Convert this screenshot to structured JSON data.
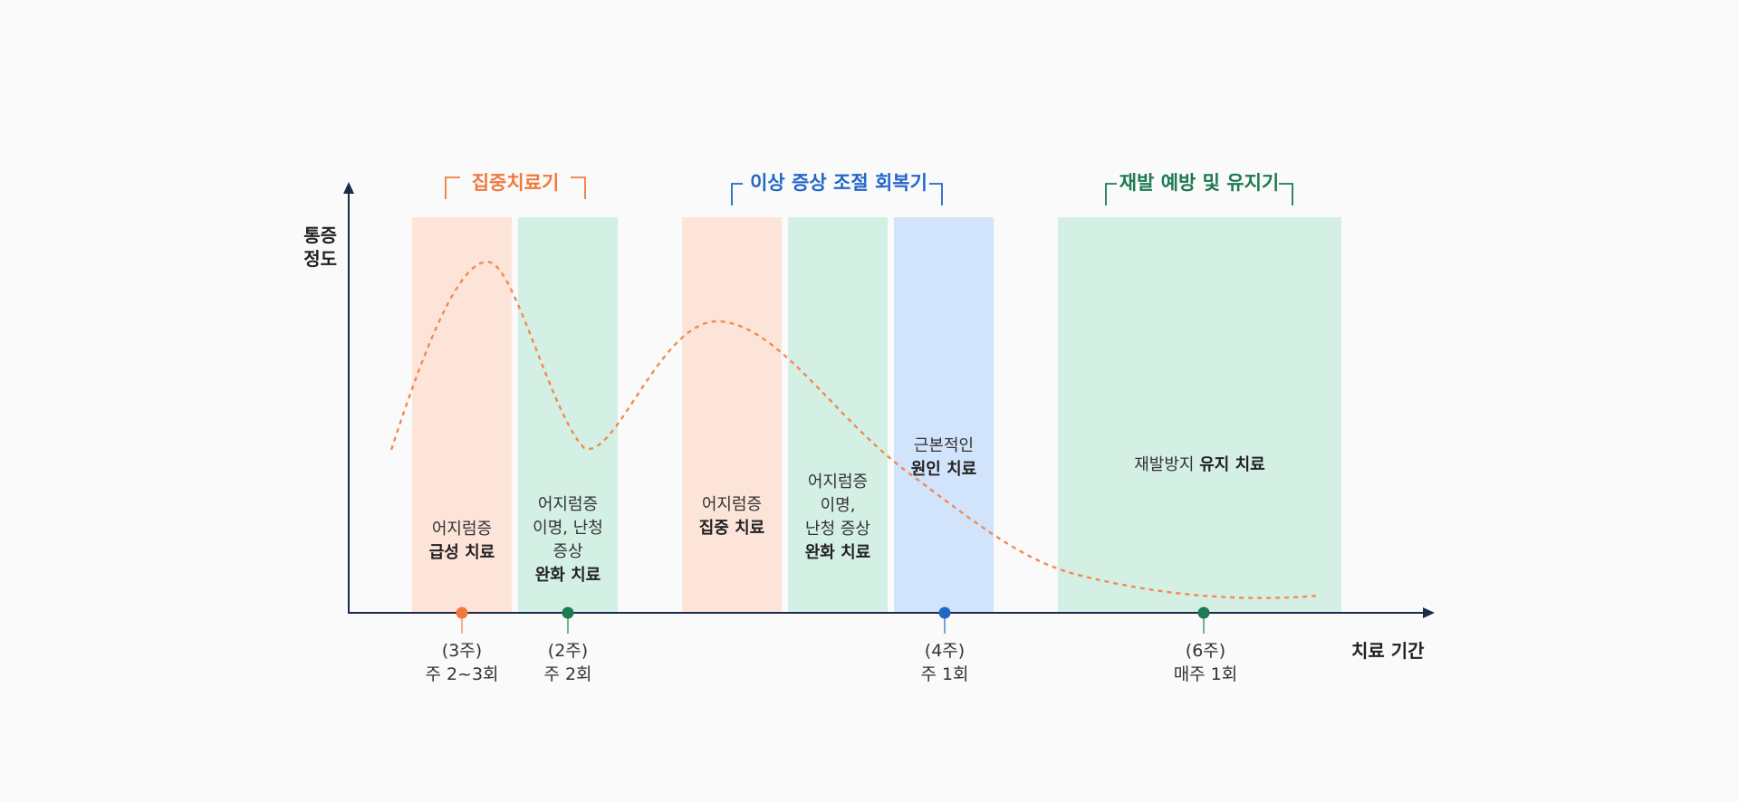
{
  "axis": {
    "y_label_line1": "통증",
    "y_label_line2": "정도",
    "x_label": "치료 기간"
  },
  "colors": {
    "orange": "#f07a3e",
    "blue": "#2366c9",
    "green": "#1e7a52",
    "band_orange": "#fde4d9",
    "band_green": "#d4efe3",
    "band_blue": "#d2e3fc",
    "axis": "#1c2b4a"
  },
  "phases": [
    {
      "label": "집중치료기",
      "color": "orange"
    },
    {
      "label": "이상 증상 조절 회복기",
      "color": "blue"
    },
    {
      "label": "재발 예방 및 유지기",
      "color": "green"
    }
  ],
  "bands": [
    {
      "normal_lines": [
        "어지럼증"
      ],
      "bold_line": "급성 치료"
    },
    {
      "normal_lines": [
        "어지럼증",
        "이명, 난청",
        "증상"
      ],
      "bold_line": "완화 치료"
    },
    {
      "normal_lines": [
        "어지럼증"
      ],
      "bold_line": "집중 치료"
    },
    {
      "normal_lines": [
        "어지럼증",
        "이명,",
        "난청 증상"
      ],
      "bold_line": "완화 치료"
    },
    {
      "normal_lines": [
        "근본적인"
      ],
      "bold_line": "원인 치료"
    },
    {
      "normal_text": "재발방지 ",
      "bold_line": "유지 치료"
    }
  ],
  "markers": [
    {
      "line1": "(3주)",
      "line2": "주 2~3회",
      "color": "orange"
    },
    {
      "line1": "(2주)",
      "line2": "주 2회",
      "color": "green"
    },
    {
      "line1": "(4주)",
      "line2": "주 1회",
      "color": "blue"
    },
    {
      "line1": "(6주)",
      "line2": "매주 1회",
      "color": "green"
    }
  ]
}
